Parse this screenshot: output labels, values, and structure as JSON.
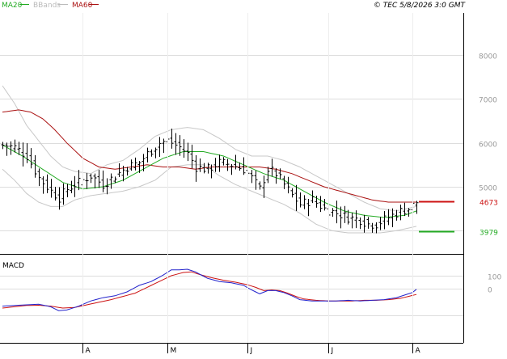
{
  "header": {
    "legend": [
      {
        "label": "MA20",
        "color": "#22aa22"
      },
      {
        "label": "BBands",
        "color": "#bbbbbb"
      },
      {
        "label": "MA60",
        "color": "#aa1111"
      }
    ],
    "source_time": "© TEC 5/8/2026 3:0 GMT"
  },
  "colors": {
    "background": "#ffffff",
    "grid": "#dddddd",
    "axis": "#000000",
    "ma20": "#22aa22",
    "ma60": "#aa1111",
    "bbands": "#c8c8c8",
    "price": "#000000",
    "macd": "#2222cc",
    "signal": "#cc1111",
    "axis_text": "#999999"
  },
  "chart_data": [
    {
      "type": "line",
      "title": "",
      "y_ticks": [
        "8000",
        "7000",
        "6000",
        "5000"
      ],
      "tick_values": [
        8000,
        7000,
        6000,
        5000
      ],
      "ylim": [
        3100,
        8600
      ],
      "x_ticks": [
        "A",
        "M",
        "J",
        "J",
        "A"
      ],
      "x_tick_positions": [
        20,
        41,
        61,
        81,
        102
      ],
      "x_count": 104,
      "levels": [
        {
          "name": "MA60",
          "value": 4673,
          "label": "4673",
          "color": "#cc1111"
        },
        {
          "name": "lower",
          "value": 3979,
          "label": "3979",
          "color": "#22aa22"
        }
      ],
      "price_anchors": [
        [
          0,
          5950
        ],
        [
          3,
          5900
        ],
        [
          6,
          5700
        ],
        [
          9,
          5200
        ],
        [
          12,
          4900
        ],
        [
          14,
          4750
        ],
        [
          16,
          4950
        ],
        [
          19,
          5100
        ],
        [
          22,
          5250
        ],
        [
          25,
          5050
        ],
        [
          28,
          5250
        ],
        [
          31,
          5450
        ],
        [
          34,
          5550
        ],
        [
          36,
          5750
        ],
        [
          39,
          6000
        ],
        [
          41,
          6050
        ],
        [
          44,
          5900
        ],
        [
          46,
          5750
        ],
        [
          48,
          5450
        ],
        [
          51,
          5400
        ],
        [
          54,
          5550
        ],
        [
          57,
          5500
        ],
        [
          60,
          5400
        ],
        [
          62,
          5200
        ],
        [
          64,
          4950
        ],
        [
          66,
          5400
        ],
        [
          68,
          5300
        ],
        [
          70,
          5050
        ],
        [
          72,
          4800
        ],
        [
          74,
          4600
        ],
        [
          77,
          4700
        ],
        [
          80,
          4500
        ],
        [
          83,
          4400
        ],
        [
          86,
          4300
        ],
        [
          89,
          4250
        ],
        [
          91,
          4150
        ],
        [
          93,
          4150
        ],
        [
          95,
          4250
        ],
        [
          97,
          4350
        ],
        [
          99,
          4450
        ],
        [
          101,
          4500
        ],
        [
          103,
          4650
        ]
      ],
      "ma20_anchors": [
        [
          0,
          5950
        ],
        [
          5,
          5700
        ],
        [
          10,
          5400
        ],
        [
          15,
          5100
        ],
        [
          20,
          4950
        ],
        [
          25,
          5000
        ],
        [
          30,
          5150
        ],
        [
          35,
          5400
        ],
        [
          40,
          5650
        ],
        [
          45,
          5800
        ],
        [
          50,
          5800
        ],
        [
          55,
          5700
        ],
        [
          60,
          5500
        ],
        [
          65,
          5300
        ],
        [
          70,
          5150
        ],
        [
          75,
          4900
        ],
        [
          80,
          4650
        ],
        [
          85,
          4450
        ],
        [
          90,
          4350
        ],
        [
          95,
          4300
        ],
        [
          100,
          4350
        ],
        [
          103,
          4450
        ]
      ],
      "ma60_anchors": [
        [
          0,
          6700
        ],
        [
          4,
          6750
        ],
        [
          7,
          6700
        ],
        [
          10,
          6550
        ],
        [
          13,
          6300
        ],
        [
          16,
          6000
        ],
        [
          20,
          5650
        ],
        [
          24,
          5450
        ],
        [
          28,
          5400
        ],
        [
          32,
          5450
        ],
        [
          36,
          5500
        ],
        [
          40,
          5450
        ],
        [
          44,
          5450
        ],
        [
          48,
          5400
        ],
        [
          52,
          5450
        ],
        [
          56,
          5450
        ],
        [
          60,
          5450
        ],
        [
          64,
          5450
        ],
        [
          68,
          5400
        ],
        [
          72,
          5300
        ],
        [
          76,
          5150
        ],
        [
          80,
          5000
        ],
        [
          84,
          4900
        ],
        [
          88,
          4800
        ],
        [
          92,
          4700
        ],
        [
          96,
          4650
        ],
        [
          100,
          4650
        ],
        [
          103,
          4650
        ]
      ],
      "bb_upper_anchors": [
        [
          0,
          7300
        ],
        [
          3,
          6900
        ],
        [
          6,
          6400
        ],
        [
          9,
          6050
        ],
        [
          12,
          5700
        ],
        [
          15,
          5450
        ],
        [
          18,
          5350
        ],
        [
          22,
          5300
        ],
        [
          26,
          5500
        ],
        [
          30,
          5600
        ],
        [
          34,
          5850
        ],
        [
          38,
          6150
        ],
        [
          42,
          6300
        ],
        [
          46,
          6350
        ],
        [
          50,
          6300
        ],
        [
          54,
          6100
        ],
        [
          58,
          5850
        ],
        [
          62,
          5700
        ],
        [
          66,
          5700
        ],
        [
          70,
          5600
        ],
        [
          74,
          5450
        ],
        [
          78,
          5250
        ],
        [
          82,
          5050
        ],
        [
          86,
          4850
        ],
        [
          90,
          4650
        ],
        [
          94,
          4500
        ],
        [
          98,
          4450
        ],
        [
          103,
          4550
        ]
      ],
      "bb_lower_anchors": [
        [
          0,
          5400
        ],
        [
          3,
          5150
        ],
        [
          6,
          4850
        ],
        [
          9,
          4650
        ],
        [
          12,
          4550
        ],
        [
          15,
          4550
        ],
        [
          18,
          4700
        ],
        [
          22,
          4800
        ],
        [
          26,
          4850
        ],
        [
          30,
          4900
        ],
        [
          34,
          5000
        ],
        [
          38,
          5150
        ],
        [
          42,
          5450
        ],
        [
          46,
          5500
        ],
        [
          50,
          5500
        ],
        [
          54,
          5250
        ],
        [
          58,
          5050
        ],
        [
          62,
          4900
        ],
        [
          66,
          4750
        ],
        [
          70,
          4600
        ],
        [
          74,
          4400
        ],
        [
          78,
          4150
        ],
        [
          82,
          4000
        ],
        [
          86,
          3950
        ],
        [
          90,
          3950
        ],
        [
          94,
          3950
        ],
        [
          98,
          4000
        ],
        [
          103,
          4100
        ]
      ]
    },
    {
      "type": "line",
      "title": "MACD",
      "y_ticks": [
        "100",
        "0"
      ],
      "tick_values": [
        100,
        0
      ],
      "ylim": [
        -280,
        200
      ],
      "x_count": 104,
      "macd_anchors": [
        [
          0,
          -135
        ],
        [
          3,
          -130
        ],
        [
          6,
          -125
        ],
        [
          9,
          -120
        ],
        [
          12,
          -140
        ],
        [
          14,
          -170
        ],
        [
          16,
          -165
        ],
        [
          19,
          -135
        ],
        [
          22,
          -95
        ],
        [
          25,
          -70
        ],
        [
          28,
          -55
        ],
        [
          31,
          -25
        ],
        [
          34,
          25
        ],
        [
          37,
          55
        ],
        [
          40,
          105
        ],
        [
          42,
          145
        ],
        [
          44,
          145
        ],
        [
          46,
          150
        ],
        [
          48,
          130
        ],
        [
          51,
          80
        ],
        [
          54,
          55
        ],
        [
          57,
          45
        ],
        [
          60,
          25
        ],
        [
          62,
          -10
        ],
        [
          64,
          -40
        ],
        [
          66,
          -15
        ],
        [
          68,
          -15
        ],
        [
          70,
          -30
        ],
        [
          72,
          -55
        ],
        [
          74,
          -85
        ],
        [
          77,
          -95
        ],
        [
          80,
          -95
        ],
        [
          83,
          -95
        ],
        [
          86,
          -90
        ],
        [
          89,
          -95
        ],
        [
          92,
          -90
        ],
        [
          95,
          -85
        ],
        [
          98,
          -70
        ],
        [
          100,
          -50
        ],
        [
          102,
          -30
        ],
        [
          103,
          -5
        ]
      ],
      "signal_anchors": [
        [
          0,
          -150
        ],
        [
          3,
          -140
        ],
        [
          6,
          -130
        ],
        [
          9,
          -128
        ],
        [
          12,
          -135
        ],
        [
          15,
          -150
        ],
        [
          18,
          -145
        ],
        [
          21,
          -125
        ],
        [
          24,
          -105
        ],
        [
          27,
          -85
        ],
        [
          30,
          -60
        ],
        [
          33,
          -35
        ],
        [
          36,
          10
        ],
        [
          39,
          55
        ],
        [
          42,
          100
        ],
        [
          45,
          125
        ],
        [
          47,
          130
        ],
        [
          49,
          110
        ],
        [
          52,
          85
        ],
        [
          55,
          65
        ],
        [
          58,
          50
        ],
        [
          61,
          30
        ],
        [
          63,
          10
        ],
        [
          65,
          -15
        ],
        [
          67,
          -10
        ],
        [
          69,
          -15
        ],
        [
          71,
          -35
        ],
        [
          73,
          -60
        ],
        [
          75,
          -80
        ],
        [
          78,
          -90
        ],
        [
          81,
          -95
        ],
        [
          84,
          -95
        ],
        [
          87,
          -95
        ],
        [
          90,
          -90
        ],
        [
          93,
          -90
        ],
        [
          96,
          -85
        ],
        [
          99,
          -75
        ],
        [
          101,
          -60
        ],
        [
          103,
          -45
        ]
      ]
    }
  ]
}
